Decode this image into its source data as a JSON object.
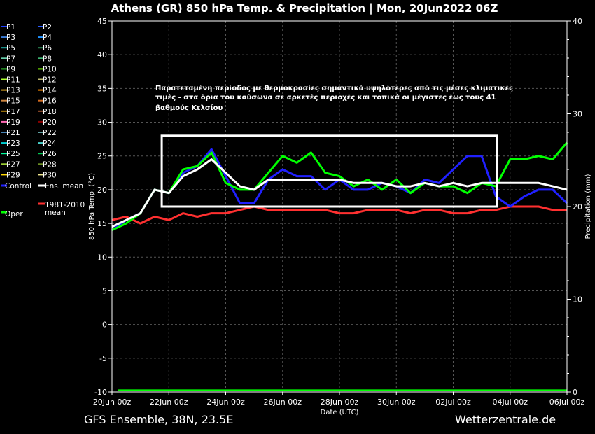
{
  "chart_data": {
    "type": "line",
    "title": "Athens  (GR)  850 hPa Temp. & Precipitation | Mon, 20Jun2022 06Z",
    "xlabel": "Date (UTC)",
    "ylabel": "850 hPa Temp. (°C)",
    "y2label": "Precipitation (mm)",
    "ylim": [
      -10,
      45
    ],
    "y2lim": [
      0,
      40
    ],
    "yticks": [
      45,
      40,
      35,
      30,
      25,
      20,
      15,
      10,
      5,
      0,
      -5,
      -10
    ],
    "y2ticks": [
      40,
      30,
      20,
      10,
      0
    ],
    "xlim": [
      0,
      16
    ],
    "xticks": [
      {
        "x": 0,
        "label": "20Jun 00z"
      },
      {
        "x": 2,
        "label": "22Jun 00z"
      },
      {
        "x": 4,
        "label": "24Jun 00z"
      },
      {
        "x": 6,
        "label": "26Jun 00z"
      },
      {
        "x": 8,
        "label": "28Jun 00z"
      },
      {
        "x": 10,
        "label": "30Jun 00z"
      },
      {
        "x": 12,
        "label": "02Jul 00z"
      },
      {
        "x": 14,
        "label": "04Jul 00z"
      },
      {
        "x": 16,
        "label": "06Jul 00z"
      }
    ],
    "grid": true,
    "legend_position": "left",
    "legend": [
      {
        "label": "P1",
        "color": "#1f3fff"
      },
      {
        "label": "P2",
        "color": "#2a5cff"
      },
      {
        "label": "P3",
        "color": "#3a7bd5"
      },
      {
        "label": "P4",
        "color": "#1e90ff"
      },
      {
        "label": "P5",
        "color": "#20b2aa"
      },
      {
        "label": "P6",
        "color": "#2e8b57"
      },
      {
        "label": "P7",
        "color": "#66cdaa"
      },
      {
        "label": "P8",
        "color": "#3cb371"
      },
      {
        "label": "P9",
        "color": "#32cd32"
      },
      {
        "label": "P10",
        "color": "#7fff00"
      },
      {
        "label": "P11",
        "color": "#adff2f"
      },
      {
        "label": "P12",
        "color": "#bdb76b"
      },
      {
        "label": "P13",
        "color": "#daa520"
      },
      {
        "label": "P14",
        "color": "#ff8c00"
      },
      {
        "label": "P15",
        "color": "#cd853f"
      },
      {
        "label": "P16",
        "color": "#d2691e"
      },
      {
        "label": "P17",
        "color": "#b8860b"
      },
      {
        "label": "P18",
        "color": "#a0522d"
      },
      {
        "label": "P19",
        "color": "#ff69b4"
      },
      {
        "label": "P20",
        "color": "#8b0000"
      },
      {
        "label": "P21",
        "color": "#4682b4"
      },
      {
        "label": "P22",
        "color": "#5f9ea0"
      },
      {
        "label": "P23",
        "color": "#00ced1"
      },
      {
        "label": "P24",
        "color": "#48d1cc"
      },
      {
        "label": "P25",
        "color": "#00fa9a"
      },
      {
        "label": "P26",
        "color": "#00c853"
      },
      {
        "label": "P27",
        "color": "#9acd32"
      },
      {
        "label": "P28",
        "color": "#6b8e23"
      },
      {
        "label": "P29",
        "color": "#ffd700"
      },
      {
        "label": "P30",
        "color": "#f0e68c"
      },
      {
        "label": "Control",
        "color": "#2020ff"
      },
      {
        "label": "Ens. mean",
        "color": "#ffffff"
      },
      {
        "label": "1981-2010 mean",
        "color": "#ff3030"
      },
      {
        "label": "Oper",
        "color": "#00ff00"
      }
    ],
    "series": [
      {
        "name": "Ens. mean",
        "color": "#ffffff",
        "x": [
          0,
          0.5,
          1,
          1.5,
          2,
          2.5,
          3,
          3.5,
          4,
          4.5,
          5,
          5.5,
          6,
          6.5,
          7,
          7.5,
          8,
          8.5,
          9,
          9.5,
          10,
          10.5,
          11,
          11.5,
          12,
          12.5,
          13,
          13.5,
          14,
          14.5,
          15,
          15.5,
          16
        ],
        "y": [
          14.5,
          15.5,
          16.5,
          20,
          19.5,
          22,
          23,
          24.5,
          22.5,
          20.5,
          20,
          21.5,
          21.5,
          21.5,
          21.5,
          21.5,
          21.5,
          21,
          21,
          21,
          20.5,
          20.5,
          21,
          20.5,
          21,
          20.5,
          21,
          21,
          21,
          21,
          21,
          20.5,
          20
        ]
      },
      {
        "name": "Control",
        "color": "#2020ff",
        "x": [
          0,
          0.5,
          1,
          1.5,
          2,
          2.5,
          3,
          3.5,
          4,
          4.5,
          5,
          5.5,
          6,
          6.5,
          7,
          7.5,
          8,
          8.5,
          9,
          9.5,
          10,
          10.5,
          11,
          11.5,
          12,
          12.5,
          13,
          13.5,
          14,
          14.5,
          15,
          15.5,
          16
        ],
        "y": [
          14,
          15.5,
          16.5,
          20,
          19.5,
          22.5,
          23.5,
          26,
          22,
          18,
          18,
          21.5,
          23,
          22,
          22,
          20,
          21.5,
          20,
          20,
          21,
          20.5,
          19.5,
          21.5,
          21,
          23,
          25,
          25,
          19,
          17.5,
          19,
          20,
          20,
          18
        ]
      },
      {
        "name": "Oper",
        "color": "#00ff00",
        "x": [
          0,
          0.5,
          1,
          1.5,
          2,
          2.5,
          3,
          3.5,
          4,
          4.5,
          5,
          5.5,
          6,
          6.5,
          7,
          7.5,
          8,
          8.5,
          9,
          9.5,
          10,
          10.5,
          11,
          11.5,
          12,
          12.5,
          13,
          13.5,
          14,
          14.5,
          15,
          15.5,
          16
        ],
        "y": [
          14,
          15,
          16.5,
          20,
          19.5,
          23,
          23.5,
          25.5,
          21,
          20,
          20,
          22.5,
          25,
          24,
          25.5,
          22.5,
          22,
          20.5,
          21.5,
          20,
          21.5,
          19.5,
          21,
          20.5,
          20.5,
          19.5,
          21,
          20.5,
          24.5,
          24.5,
          25,
          24.5,
          27
        ]
      },
      {
        "name": "1981-2010 mean",
        "color": "#ff3030",
        "x": [
          0,
          0.5,
          1,
          1.5,
          2,
          2.5,
          3,
          3.5,
          4,
          4.5,
          5,
          5.5,
          6,
          6.5,
          7,
          7.5,
          8,
          8.5,
          9,
          9.5,
          10,
          10.5,
          11,
          11.5,
          12,
          12.5,
          13,
          13.5,
          14,
          14.5,
          15,
          15.5,
          16
        ],
        "y": [
          15.5,
          16,
          15,
          16,
          15.5,
          16.5,
          16,
          16.5,
          16.5,
          17,
          17.5,
          17,
          17,
          17,
          17,
          17,
          16.5,
          16.5,
          17,
          17,
          17,
          16.5,
          17,
          17,
          16.5,
          16.5,
          17,
          17,
          17.5,
          17.5,
          17.5,
          17,
          17
        ]
      }
    ],
    "annotation": {
      "lines": [
        "Παρατεταμένη περίοδος με θερμοκρασίες σημαντικά υψηλότερες από τις μέσες κλιματικές",
        "τιμές - στα όρια του καύσωνα σε αρκετές περιοχές και τοπικά οι μέγιστες έως τους 41",
        "βαθμούς Κελσίου"
      ],
      "box_x": [
        1.75,
        13.55
      ],
      "box_y": [
        17.5,
        28
      ]
    }
  },
  "footer": {
    "left": "GFS Ensemble, 38N, 23.5E",
    "right": "Wetterzentrale.de"
  }
}
